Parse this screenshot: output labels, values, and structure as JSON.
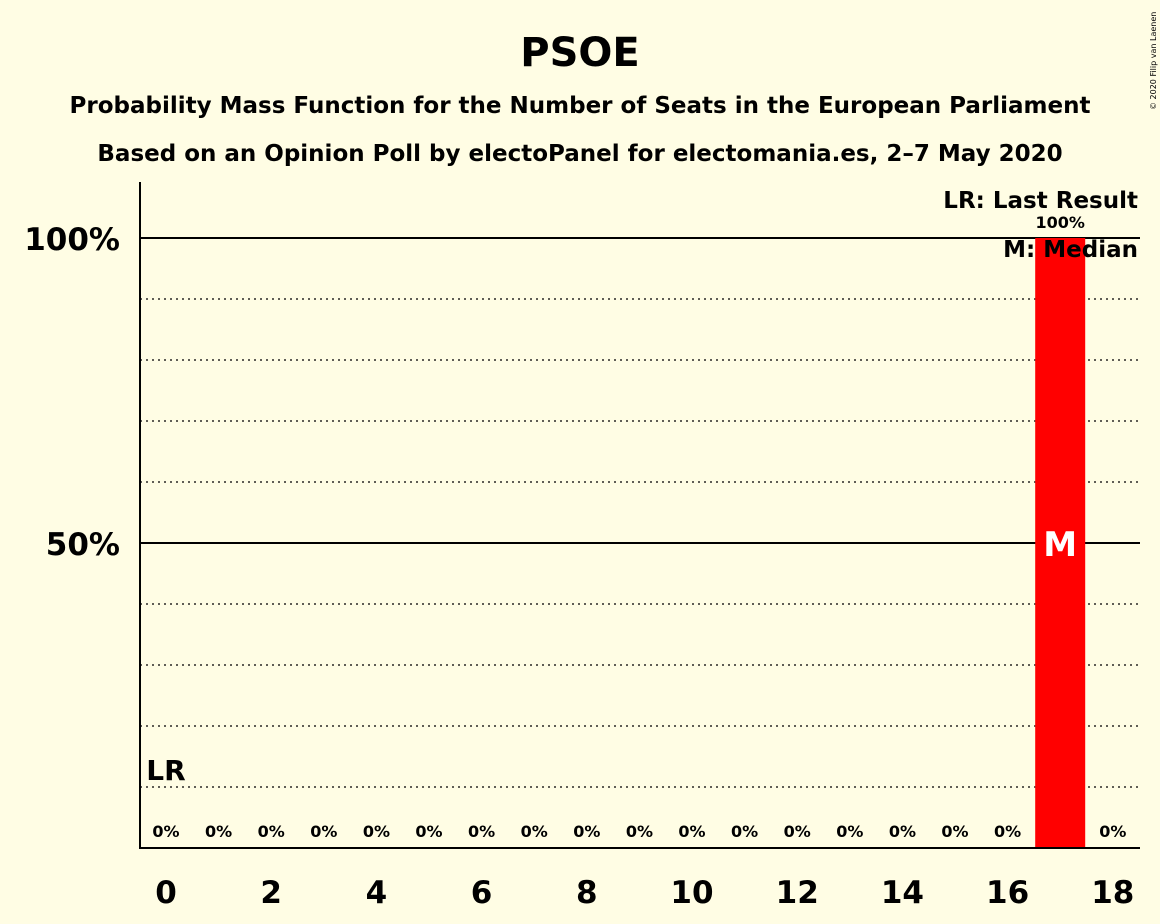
{
  "chart_data": {
    "type": "bar",
    "title": "PSOE",
    "subtitle_1": "Probability Mass Function for the Number of Seats in the European Parliament",
    "subtitle_2": "Based on an Opinion Poll by electoPanel for electomania.es, 2–7 May 2020",
    "x": [
      0,
      1,
      2,
      3,
      4,
      5,
      6,
      7,
      8,
      9,
      10,
      11,
      12,
      13,
      14,
      15,
      16,
      17,
      18
    ],
    "values": [
      0,
      0,
      0,
      0,
      0,
      0,
      0,
      0,
      0,
      0,
      0,
      0,
      0,
      0,
      0,
      0,
      0,
      100,
      0
    ],
    "value_labels": [
      "0%",
      "0%",
      "0%",
      "0%",
      "0%",
      "0%",
      "0%",
      "0%",
      "0%",
      "0%",
      "0%",
      "0%",
      "0%",
      "0%",
      "0%",
      "0%",
      "0%",
      "100%",
      "0%"
    ],
    "xticks": [
      0,
      2,
      4,
      6,
      8,
      10,
      12,
      14,
      16,
      18
    ],
    "yticks": [
      {
        "value": 50,
        "label": "50%"
      },
      {
        "value": 100,
        "label": "100%"
      }
    ],
    "ylim": [
      0,
      109
    ],
    "minor_grid_step": 10,
    "last_result_seat": 0,
    "last_result_label": "LR",
    "median_seat": 17,
    "median_label": "M",
    "legend": [
      "LR: Last Result",
      "M: Median"
    ],
    "legend_position": "top-right",
    "bar_color": "#FF0000",
    "background_color": "#FFFDE4",
    "copyright": "© 2020 Filip van Laenen"
  }
}
